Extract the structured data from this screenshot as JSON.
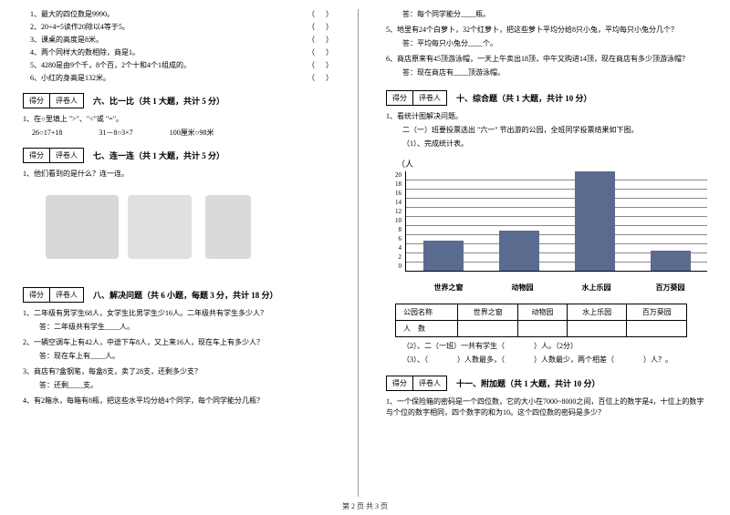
{
  "left": {
    "tf_items": [
      {
        "n": "1",
        "text": "最大的四位数是9990。"
      },
      {
        "n": "2",
        "text": "20÷4=5读作20除以4等于5。"
      },
      {
        "n": "3",
        "text": "课桌的高度是8米。"
      },
      {
        "n": "4",
        "text": "两个同样大的数相除，商是1。"
      },
      {
        "n": "5",
        "text": "4280是由9个千，8个百，2个十和4个1组成的。"
      },
      {
        "n": "6",
        "text": "小红的身高是132米。"
      }
    ],
    "score_a": "得分",
    "score_b": "评卷人",
    "sec6_title": "六、比一比（共 1 大题，共计 5 分）",
    "sec6_q": "1、在○里填上 \">\"、\"<\"或 \"=\"。",
    "sec6_row1a": "26○17+18",
    "sec6_row1b": "31－8○3×7",
    "sec6_row1c": "100厘米○98米",
    "sec7_title": "七、连一连（共 1 大题，共计 5 分）",
    "sec7_q": "1、他们看到的是什么？连一连。",
    "sec8_title": "八、解决问题（共 6 小题，每题 3 分，共计 18 分）",
    "q8_1": "1、二年级有男学生68人，女学生比男学生少16人。二年级共有学生多少人？",
    "a8_1": "答：二年级共有学生____人。",
    "q8_2": "2、一辆空调车上有42人，中途下车8人，又上来16人，现在车上有多少人？",
    "a8_2": "答：现在车上有____人。",
    "q8_3": "3、商店有7盒钢笔，每盒8支，卖了28支，还剩多少支？",
    "a8_3": "答：还剩____支。",
    "q8_4": "4、有2箱水，每箱有8瓶，把这些水平均分给4个同学，每个同学能分几瓶？"
  },
  "right": {
    "a8_4": "答：每个同学能分____瓶。",
    "q8_5": "5、地里有24个白萝卜，32个红萝卜，把这些萝卜平均分给8只小兔，平均每只小兔分几个？",
    "a8_5": "答：平均每只小兔分____个。",
    "q8_6": "6、商店原来有45顶游泳帽，一天上午卖出18顶，中午又购进14顶，现在商店有多少顶游泳帽？",
    "a8_6": "答：现在商店有____顶游泳帽。",
    "sec10_title": "十、综合题（共 1 大题，共计 10 分）",
    "q10_1": "1、看统计图解决问题。",
    "q10_1a": "二（一）班要投票选出 \"六一\" 节出游的公园，全班同学投票结果如下图。",
    "q10_1b": "（1）、完成统计表。",
    "chart": {
      "y_label": "（人",
      "y_ticks": [
        "20",
        "18",
        "16",
        "14",
        "12",
        "10",
        "8",
        "6",
        "4",
        "2",
        "0"
      ],
      "categories": [
        "世界之窗",
        "动物园",
        "水上乐园",
        "百万葵园"
      ],
      "values": [
        6,
        8,
        20,
        4
      ],
      "ymax": 20,
      "bar_color": "#5b6b8f"
    },
    "table": {
      "h1": "公园名称",
      "h2": "世界之窗",
      "h3": "动物园",
      "h4": "水上乐园",
      "h5": "百万葵园",
      "r1": "人　数"
    },
    "q10_2": "（2）、二（一班）一共有学生（　　　　）人。（2分）",
    "q10_3": "（3）、（　　　　）人数最多，（　　　　）人数最少，两个相差（　　　　）人？。",
    "sec11_title": "十一、附加题（共 1 大题，共计 10 分）",
    "q11": "1、一个保险箱的密码是一个四位数，它的大小在7000~8000之间，百位上的数字是4，十位上的数字与个位的数字相同，四个数字的和为10。这个四位数的密码是多少？"
  },
  "footer": "第 2 页 共 3 页"
}
